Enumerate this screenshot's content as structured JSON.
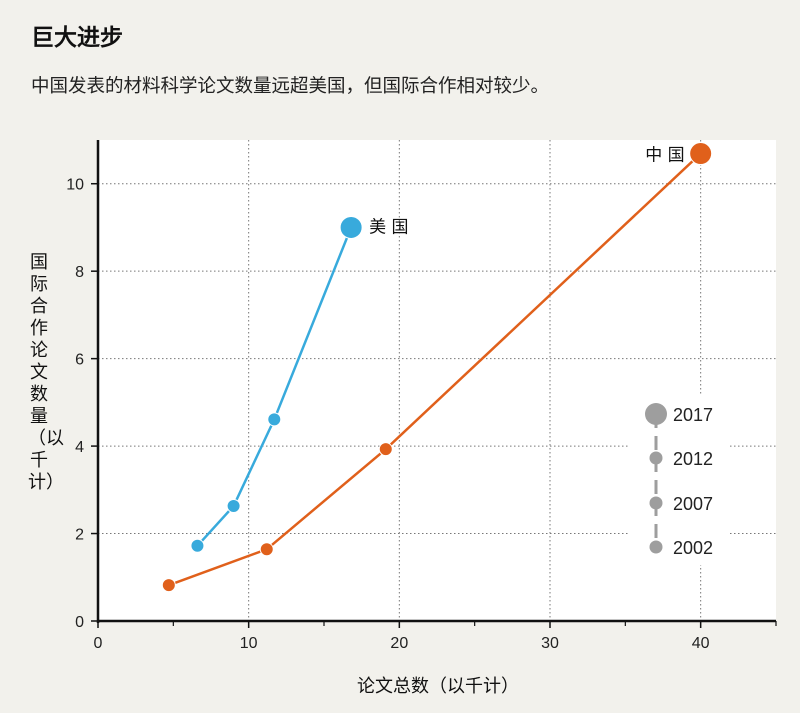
{
  "chart_data": {
    "type": "scatter",
    "title": "巨大进步",
    "subtitle": "中国发表的材料科学论文数量远超美国，但国际合作相对较少。",
    "xlabel": "论文总数（以千计）",
    "ylabel": "国际合作论文数量（以千计）",
    "xlim": [
      0,
      45
    ],
    "ylim": [
      0,
      11
    ],
    "xticks": [
      "0",
      "10",
      "20",
      "30",
      "40"
    ],
    "yticks": [
      "0",
      "2",
      "4",
      "6",
      "8",
      "10"
    ],
    "grid": true,
    "years": [
      "2002",
      "2007",
      "2012",
      "2017"
    ],
    "series": [
      {
        "name": "美 国",
        "color": "#38aadc",
        "x": [
          6.6,
          9.0,
          11.7,
          16.8
        ],
        "y": [
          1.72,
          2.63,
          4.61,
          9.0
        ]
      },
      {
        "name": "中 国",
        "color": "#e0601b",
        "x": [
          4.7,
          11.2,
          19.1,
          40.0
        ],
        "y": [
          0.82,
          1.64,
          3.93,
          10.69
        ]
      }
    ],
    "legend": {
      "placement": "bottom-right",
      "color": "#9e9e9e",
      "entries": [
        "2017",
        "2012",
        "2007",
        "2002"
      ]
    }
  }
}
